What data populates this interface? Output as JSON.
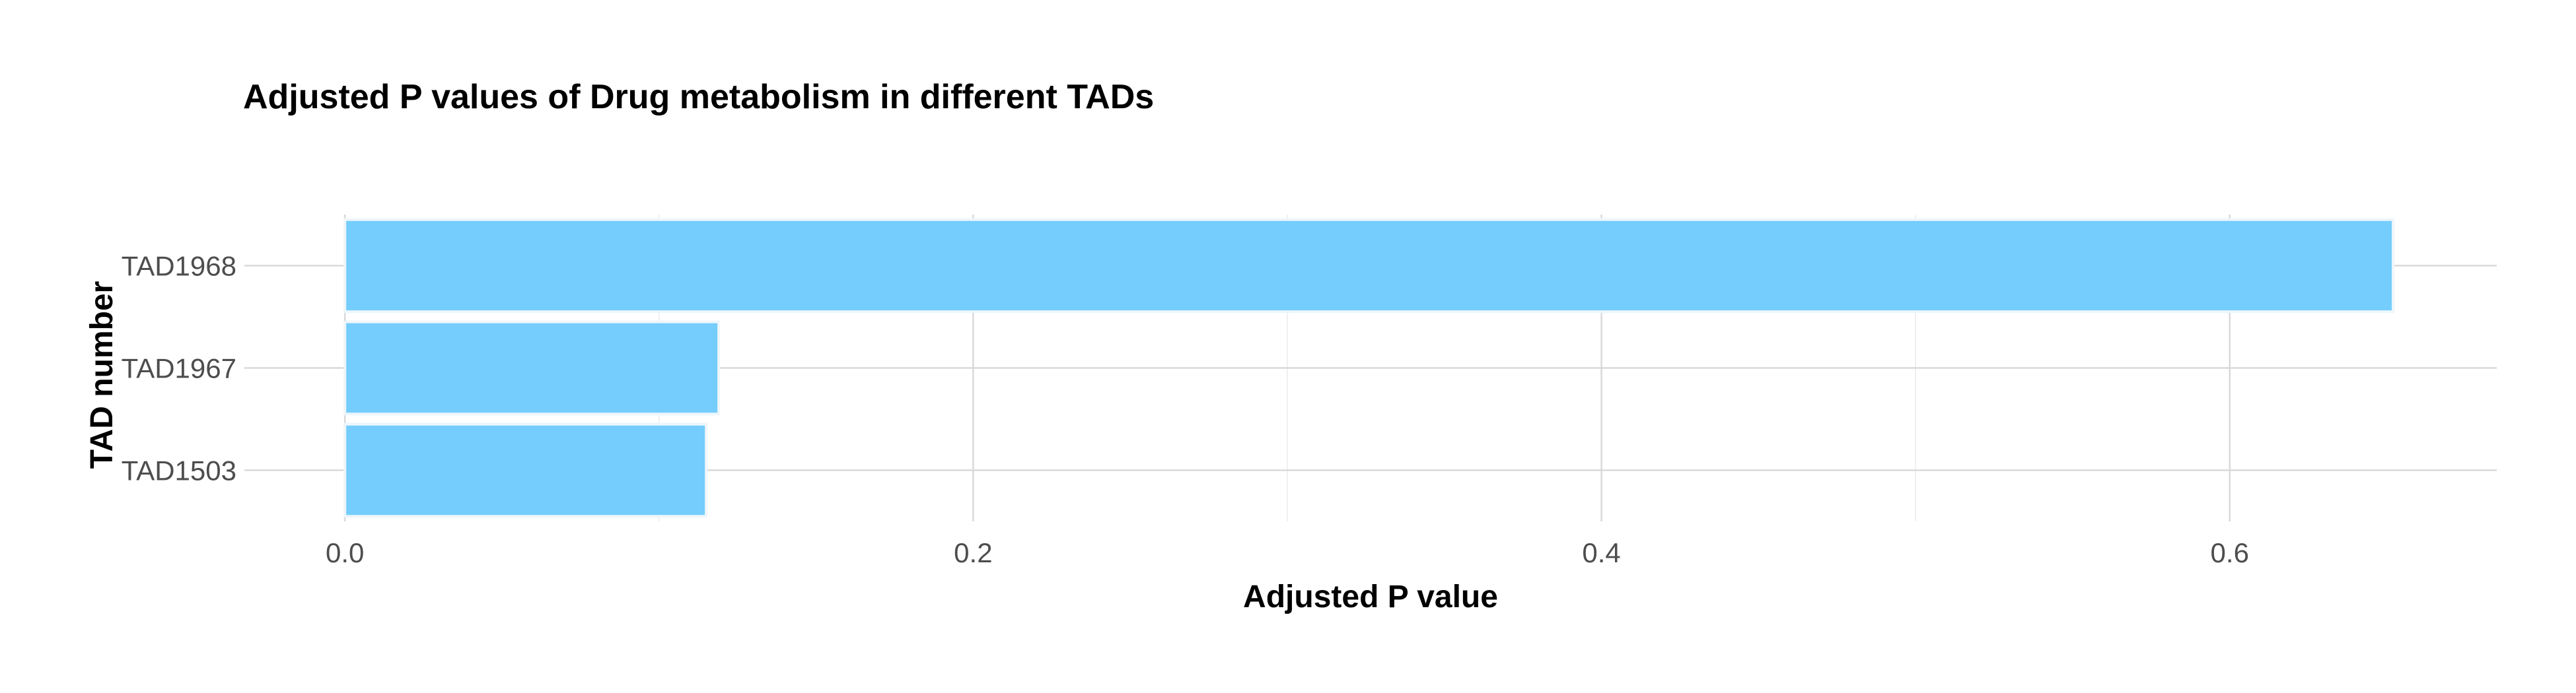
{
  "chart_data": {
    "type": "bar",
    "orientation": "horizontal",
    "title": "Adjusted P values of Drug metabolism in different TADs",
    "xlabel": "Adjusted P value",
    "ylabel": "TAD number",
    "categories": [
      "TAD1968",
      "TAD1967",
      "TAD1503"
    ],
    "values": [
      0.652,
      0.119,
      0.115
    ],
    "xlim": [
      -0.032,
      0.685
    ],
    "x_ticks": [
      "0.0",
      "0.2",
      "0.4",
      "0.6"
    ],
    "x_tick_values": [
      0,
      0.2,
      0.4,
      0.6
    ],
    "x_minor_tick_values": [
      0.1,
      0.3,
      0.5
    ],
    "grid": true,
    "legend": "none",
    "bar_color": "#74cdfc"
  }
}
